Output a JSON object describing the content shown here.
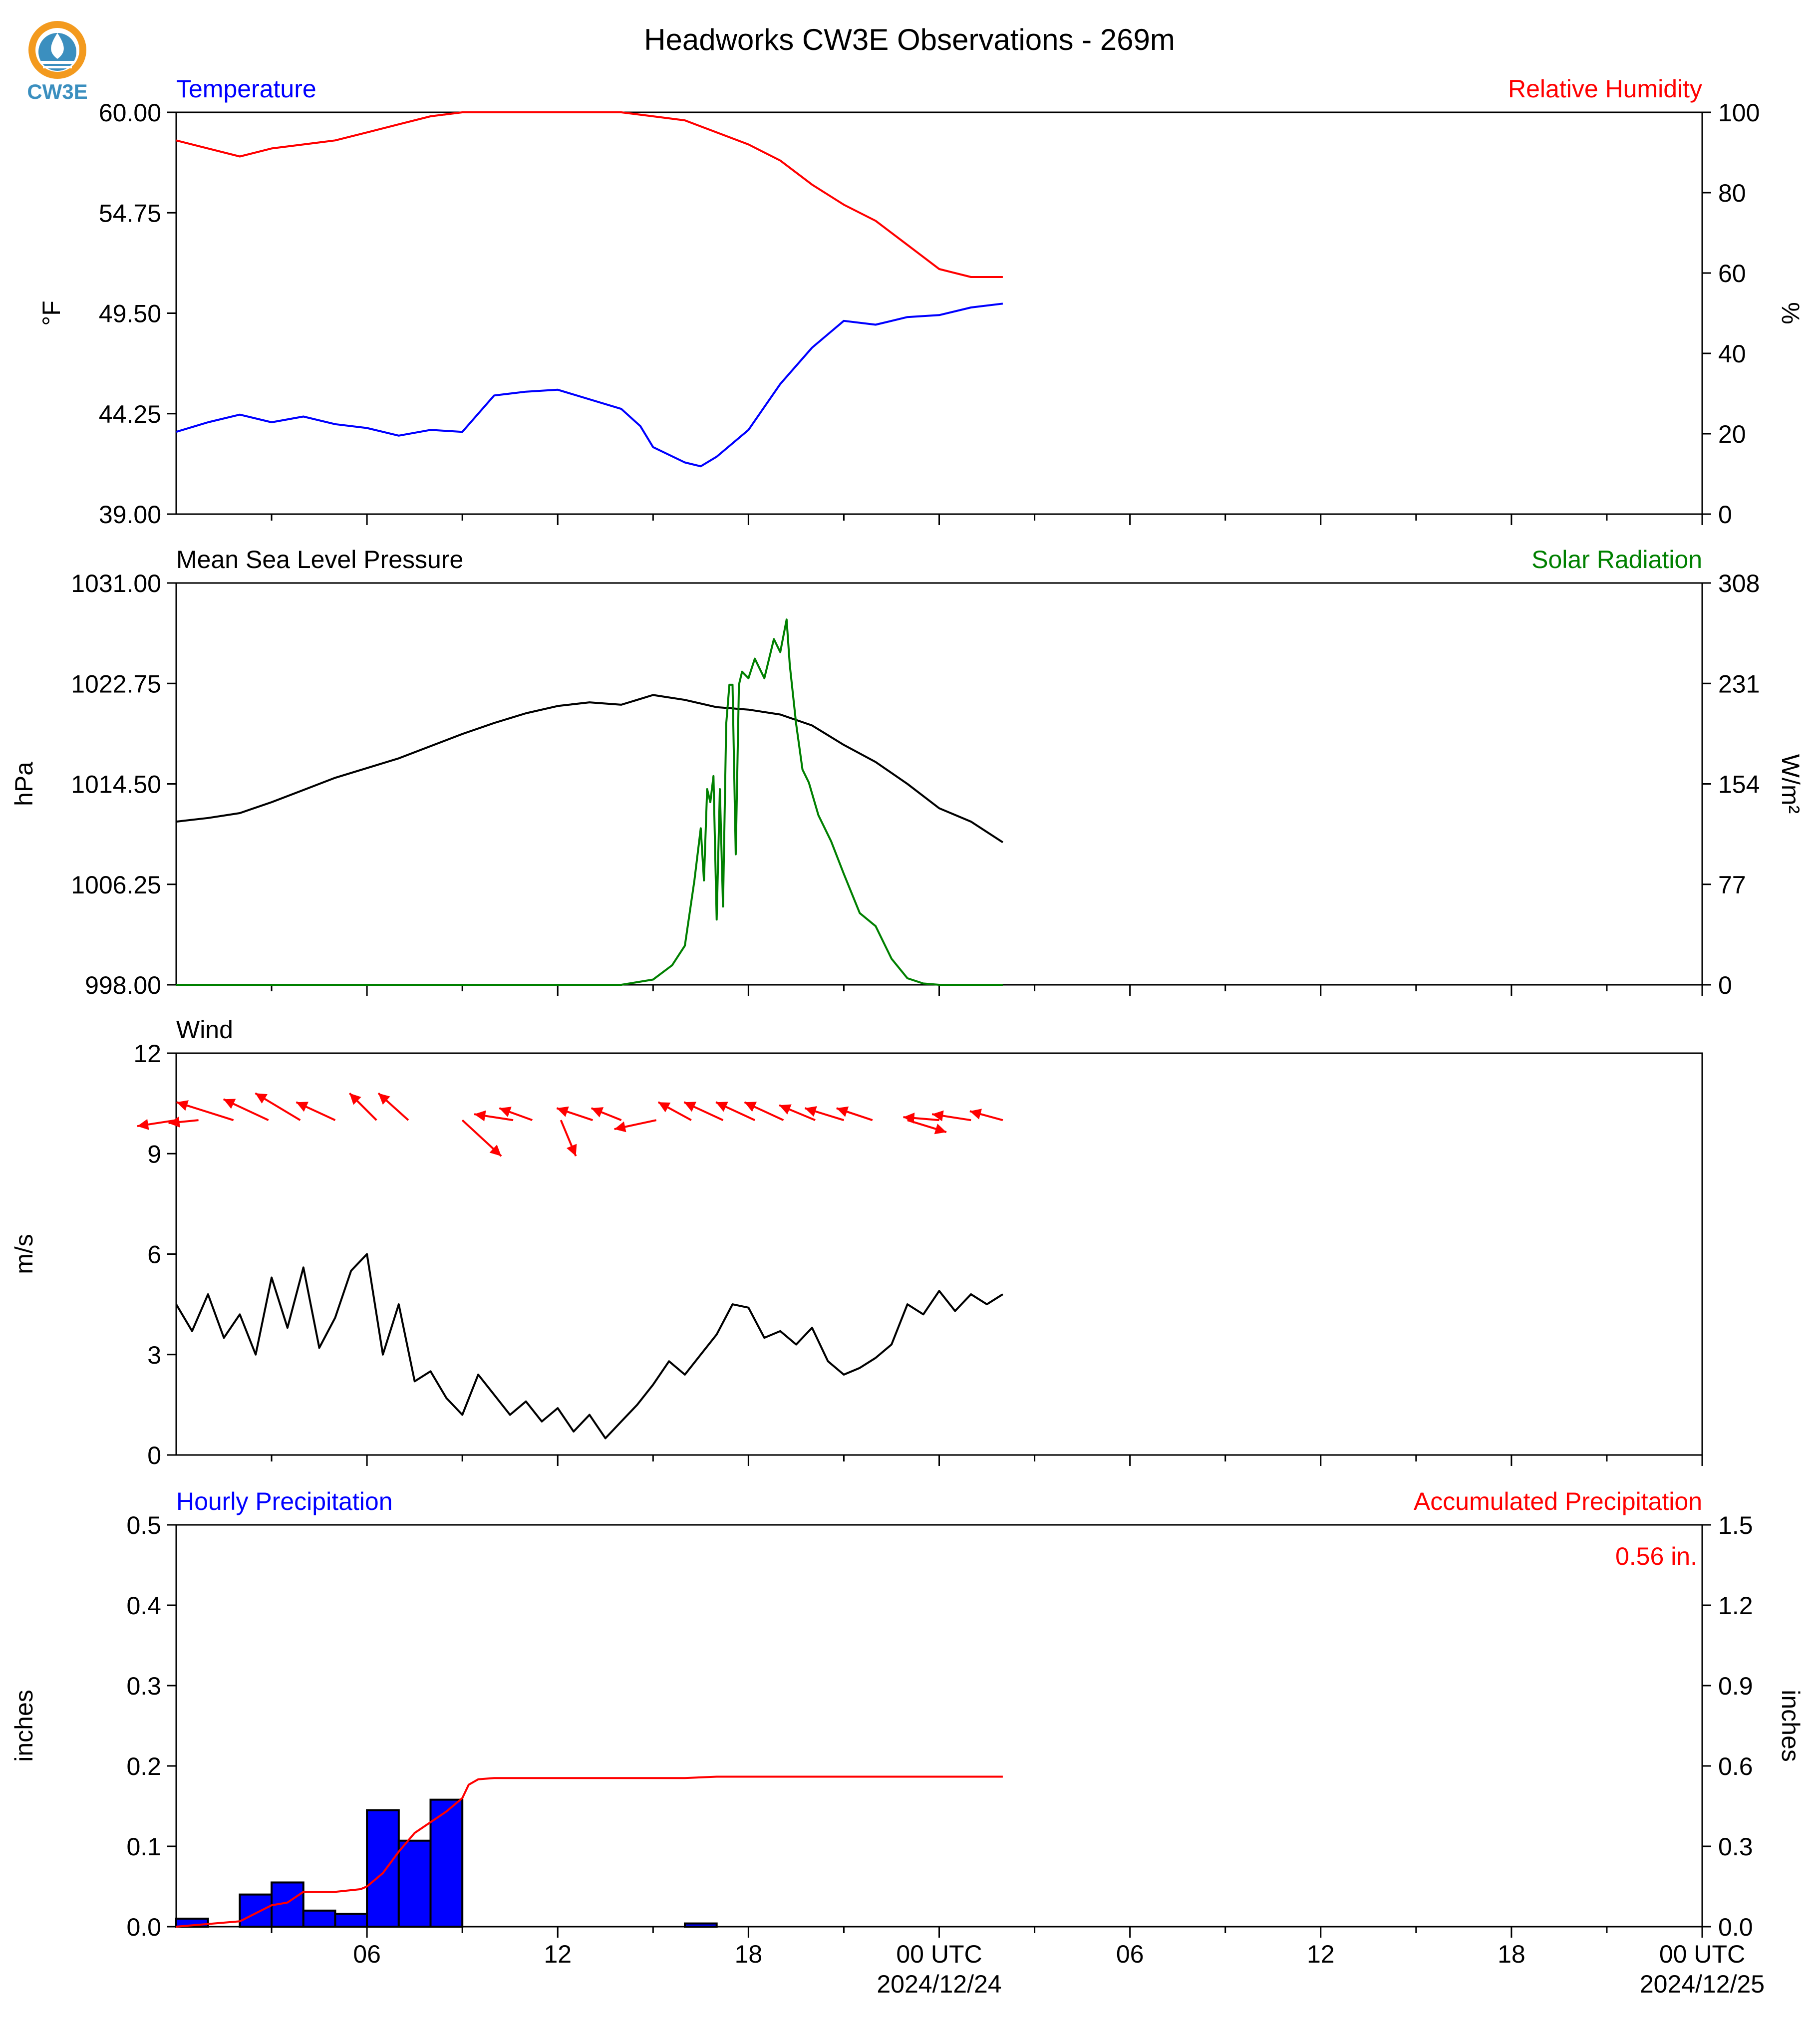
{
  "title": "Headworks CW3E Observations - 269m",
  "logo": {
    "text": "CW3E",
    "color": "#3b8fbf",
    "ring_color": "#f39a1e"
  },
  "x_axis": {
    "tick_labels": [
      "06",
      "12",
      "18",
      "00 UTC",
      "06",
      "12",
      "18",
      "00 UTC"
    ],
    "date_labels": [
      "2024/12/24",
      "2024/12/25"
    ],
    "range_hours": [
      0,
      48
    ]
  },
  "colors": {
    "blue": "#0000ff",
    "red": "#ff0000",
    "green": "#008000",
    "black": "#000000"
  },
  "chart_data": [
    {
      "type": "line",
      "left_title": "Temperature",
      "right_title": "Relative Humidity",
      "ylabel": "°F",
      "ylabel_right": "%",
      "ylim": [
        39.0,
        60.0
      ],
      "ylim_right": [
        0,
        100
      ],
      "yticks": [
        "39.00",
        "44.25",
        "49.50",
        "54.75",
        "60.00"
      ],
      "yticks_right": [
        "0",
        "20",
        "40",
        "60",
        "80",
        "100"
      ],
      "series": [
        {
          "name": "Temperature",
          "axis": "left",
          "color": "#0000ff",
          "x": [
            0,
            1,
            2,
            3,
            4,
            5,
            6,
            7,
            8,
            9,
            10,
            11,
            12,
            13,
            14,
            14.6,
            15,
            16,
            16.5,
            17,
            18,
            19,
            20,
            21,
            22,
            23,
            24,
            25,
            26
          ],
          "y": [
            43.3,
            43.8,
            44.2,
            43.8,
            44.1,
            43.7,
            43.5,
            43.1,
            43.4,
            43.3,
            45.2,
            45.4,
            45.5,
            45.0,
            44.5,
            43.6,
            42.5,
            41.7,
            41.5,
            42.0,
            43.4,
            45.8,
            47.7,
            49.1,
            48.9,
            49.3,
            49.4,
            49.8,
            50.0
          ]
        },
        {
          "name": "Relative Humidity",
          "axis": "right",
          "color": "#ff0000",
          "x": [
            0,
            1,
            2,
            3,
            4,
            5,
            6,
            7,
            8,
            9,
            10,
            11,
            12,
            13,
            14,
            15,
            16,
            17,
            18,
            19,
            20,
            21,
            22,
            23,
            24,
            25,
            26
          ],
          "y": [
            93,
            91,
            89,
            91,
            92,
            93,
            95,
            97,
            99,
            100,
            100,
            100,
            100,
            100,
            100,
            99,
            98,
            95,
            92,
            88,
            82,
            77,
            73,
            67,
            61,
            59,
            59
          ]
        }
      ]
    },
    {
      "type": "line",
      "left_title": "Mean Sea Level Pressure",
      "right_title": "Solar Radiation",
      "ylabel": "hPa",
      "ylabel_right": "W/m²",
      "ylim": [
        998.0,
        1031.0
      ],
      "ylim_right": [
        0,
        308
      ],
      "yticks": [
        "998.00",
        "1006.25",
        "1014.50",
        "1022.75",
        "1031.00"
      ],
      "yticks_right": [
        "0",
        "77",
        "154",
        "231",
        "308"
      ],
      "series": [
        {
          "name": "Mean Sea Level Pressure",
          "axis": "left",
          "color": "#000000",
          "x": [
            0,
            1,
            2,
            3,
            4,
            5,
            6,
            7,
            8,
            9,
            10,
            11,
            12,
            13,
            14,
            15,
            16,
            17,
            18,
            19,
            20,
            21,
            22,
            23,
            24,
            25,
            26
          ],
          "y": [
            1011.4,
            1011.7,
            1012.1,
            1013.0,
            1014.0,
            1015.0,
            1015.8,
            1016.6,
            1017.6,
            1018.6,
            1019.5,
            1020.3,
            1020.9,
            1021.2,
            1021.0,
            1021.8,
            1021.4,
            1020.8,
            1020.6,
            1020.2,
            1019.3,
            1017.7,
            1016.3,
            1014.5,
            1012.5,
            1011.4,
            1009.7
          ]
        },
        {
          "name": "Solar Radiation",
          "axis": "right",
          "color": "#008000",
          "x": [
            0,
            14.0,
            15.0,
            15.6,
            16.0,
            16.3,
            16.5,
            16.6,
            16.7,
            16.8,
            16.9,
            17.0,
            17.1,
            17.2,
            17.3,
            17.4,
            17.5,
            17.6,
            17.7,
            17.8,
            18.0,
            18.2,
            18.5,
            18.8,
            19.0,
            19.2,
            19.3,
            19.5,
            19.7,
            19.9,
            20.2,
            20.6,
            21.0,
            21.5,
            22.0,
            22.5,
            23.0,
            23.5,
            24.0,
            24.5,
            26.0
          ],
          "y": [
            0,
            0,
            4,
            15,
            30,
            80,
            120,
            80,
            150,
            140,
            160,
            50,
            150,
            60,
            200,
            230,
            230,
            100,
            230,
            240,
            235,
            250,
            235,
            265,
            255,
            280,
            245,
            200,
            165,
            155,
            130,
            110,
            85,
            55,
            45,
            20,
            5,
            1,
            0,
            0,
            0
          ]
        }
      ]
    },
    {
      "type": "line",
      "left_title": "Wind",
      "ylabel": "m/s",
      "ylim": [
        0,
        12
      ],
      "yticks": [
        "0",
        "3",
        "6",
        "9",
        "12"
      ],
      "series": [
        {
          "name": "Wind",
          "axis": "left",
          "color": "#000000",
          "x": [
            0,
            0.5,
            1,
            1.5,
            2,
            2.5,
            3,
            3.5,
            4,
            4.5,
            5,
            5.5,
            6,
            6.5,
            7,
            7.5,
            8,
            8.5,
            9,
            9.5,
            10,
            10.5,
            11,
            11.5,
            12,
            12.5,
            13,
            13.5,
            14,
            14.5,
            15,
            15.5,
            16,
            16.5,
            17,
            17.5,
            18,
            18.5,
            19,
            19.5,
            20,
            20.5,
            21,
            21.5,
            22,
            22.5,
            23,
            23.5,
            24,
            24.5,
            25,
            25.5,
            26
          ],
          "y": [
            4.5,
            3.7,
            4.8,
            3.5,
            4.2,
            3.0,
            5.3,
            3.8,
            5.6,
            3.2,
            4.1,
            5.5,
            6.0,
            3.0,
            4.5,
            2.2,
            2.5,
            1.7,
            1.2,
            2.4,
            1.8,
            1.2,
            1.6,
            1.0,
            1.4,
            0.7,
            1.2,
            0.5,
            1.0,
            1.5,
            2.1,
            2.8,
            2.4,
            3.0,
            3.6,
            4.5,
            4.4,
            3.5,
            3.7,
            3.3,
            3.8,
            2.8,
            2.4,
            2.6,
            2.9,
            3.3,
            4.5,
            4.2,
            4.9,
            4.3,
            4.8,
            4.5,
            4.8
          ]
        },
        {
          "name": "Wind Vectors",
          "axis": "left",
          "color": "#ff0000",
          "x": [
            0.0,
            0.7,
            1.8,
            2.9,
            3.9,
            5.0,
            6.3,
            7.3,
            9.0,
            10.6,
            11.2,
            12.1,
            13.1,
            14.0,
            15.1,
            16.2,
            17.2,
            18.2,
            19.1,
            20.1,
            21.0,
            21.9,
            23.0,
            24.0,
            25.0,
            26.0
          ],
          "u": [
            -1.3,
            -1.0,
            -1.9,
            -1.5,
            -1.5,
            -1.3,
            -0.9,
            -1.0,
            1.3,
            -1.3,
            -1.1,
            0.5,
            -1.2,
            -1.0,
            -1.4,
            -1.1,
            -1.3,
            -1.3,
            -1.3,
            -1.2,
            -1.3,
            -1.2,
            1.3,
            -1.2,
            -1.3,
            -1.1
          ],
          "v": [
            -0.2,
            -0.1,
            0.6,
            0.7,
            0.9,
            0.6,
            0.9,
            0.9,
            -1.2,
            0.2,
            0.4,
            -1.2,
            0.4,
            0.4,
            -0.3,
            0.6,
            0.6,
            0.6,
            0.6,
            0.5,
            0.4,
            0.4,
            -0.4,
            0.1,
            0.2,
            0.3
          ]
        }
      ]
    },
    {
      "type": "bar",
      "left_title": "Hourly Precipitation",
      "right_title": "Accumulated Precipitation",
      "ylabel": "inches",
      "ylabel_right": "inches",
      "ylim": [
        0,
        0.5
      ],
      "ylim_right": [
        0,
        1.5
      ],
      "yticks": [
        "0.0",
        "0.1",
        "0.2",
        "0.3",
        "0.4",
        "0.5"
      ],
      "yticks_right": [
        "0.0",
        "0.3",
        "0.6",
        "0.9",
        "1.2",
        "1.5"
      ],
      "annotation": "0.56 in.",
      "series": [
        {
          "name": "Hourly Precipitation",
          "axis": "left",
          "color": "#0000ff",
          "hour_start": [
            0,
            2,
            3,
            4,
            5,
            6,
            7,
            8,
            9,
            16
          ],
          "values": [
            0.01,
            0.04,
            0.055,
            0.02,
            0.016,
            0.145,
            0.107,
            0.158,
            0.0,
            0.004
          ]
        },
        {
          "name": "Accumulated Precipitation",
          "axis": "right",
          "color": "#ff0000",
          "x": [
            0,
            1,
            2,
            2.5,
            3,
            3.5,
            4,
            5,
            5.8,
            6,
            6.5,
            7,
            7.5,
            8,
            8.5,
            9,
            9.2,
            9.5,
            10,
            12,
            16,
            17,
            26
          ],
          "y": [
            0,
            0.01,
            0.02,
            0.05,
            0.08,
            0.09,
            0.13,
            0.13,
            0.14,
            0.15,
            0.2,
            0.28,
            0.35,
            0.39,
            0.43,
            0.48,
            0.53,
            0.55,
            0.555,
            0.555,
            0.555,
            0.56,
            0.56
          ]
        }
      ]
    }
  ]
}
